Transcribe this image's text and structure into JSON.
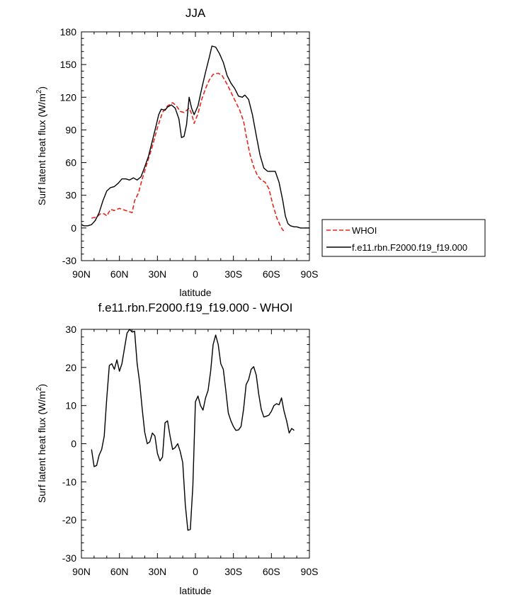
{
  "chart_data": [
    {
      "type": "line",
      "title": "JJA",
      "xlabel": "latitude",
      "ylabel": "Surf latent heat flux (W/m",
      "ylabel_sup": "2",
      "ylabel_end": ")",
      "xlim": [
        90,
        -90
      ],
      "ylim": [
        -30,
        180
      ],
      "x_ticks": [
        90,
        60,
        30,
        0,
        -30,
        -60,
        -90
      ],
      "x_tick_labels": [
        "90N",
        "60N",
        "30N",
        "0",
        "30S",
        "60S",
        "90S"
      ],
      "y_ticks": [
        -30,
        0,
        30,
        60,
        90,
        120,
        150,
        180
      ],
      "y_tick_labels": [
        "-30",
        "0",
        "30",
        "60",
        "90",
        "120",
        "150",
        "180"
      ],
      "legend": "right",
      "series": [
        {
          "name": "WHOI",
          "color": "#e8261e",
          "dash": "dashed",
          "points": [
            [
              82,
              9
            ],
            [
              78,
              10
            ],
            [
              75,
              13
            ],
            [
              72,
              13
            ],
            [
              70,
              11
            ],
            [
              67,
              17
            ],
            [
              64,
              16
            ],
            [
              60,
              18
            ],
            [
              55,
              16
            ],
            [
              50,
              14
            ],
            [
              48,
              25
            ],
            [
              45,
              32
            ],
            [
              42,
              45
            ],
            [
              38,
              60
            ],
            [
              34,
              75
            ],
            [
              30,
              92
            ],
            [
              26,
              106
            ],
            [
              22,
              112
            ],
            [
              18,
              115
            ],
            [
              15,
              112
            ],
            [
              12,
              107
            ],
            [
              9,
              106
            ],
            [
              5,
              110
            ],
            [
              3,
              105
            ],
            [
              1,
              96
            ],
            [
              -2,
              105
            ],
            [
              -5,
              118
            ],
            [
              -8,
              128
            ],
            [
              -11,
              136
            ],
            [
              -14,
              141
            ],
            [
              -18,
              142
            ],
            [
              -21,
              140
            ],
            [
              -25,
              132
            ],
            [
              -30,
              120
            ],
            [
              -35,
              108
            ],
            [
              -38,
              98
            ],
            [
              -40,
              85
            ],
            [
              -43,
              68
            ],
            [
              -46,
              56
            ],
            [
              -49,
              48
            ],
            [
              -52,
              44
            ],
            [
              -55,
              42
            ],
            [
              -58,
              36
            ],
            [
              -61,
              22
            ],
            [
              -64,
              10
            ],
            [
              -67,
              2
            ],
            [
              -69,
              -2
            ],
            [
              -71,
              -3
            ]
          ]
        },
        {
          "name": "f.e11.rbn.F2000.f19_f19.000",
          "color": "#000000",
          "dash": "solid",
          "points": [
            [
              90,
              3
            ],
            [
              88,
              2
            ],
            [
              85,
              2
            ],
            [
              82,
              3
            ],
            [
              79,
              7
            ],
            [
              76,
              14
            ],
            [
              73,
              25
            ],
            [
              70,
              34
            ],
            [
              67,
              37
            ],
            [
              64,
              38
            ],
            [
              61,
              41
            ],
            [
              58,
              45
            ],
            [
              55,
              45
            ],
            [
              52,
              44
            ],
            [
              49,
              46
            ],
            [
              46,
              44
            ],
            [
              43,
              47
            ],
            [
              40,
              56
            ],
            [
              37,
              66
            ],
            [
              34,
              80
            ],
            [
              31,
              94
            ],
            [
              29,
              104
            ],
            [
              27,
              109
            ],
            [
              24,
              108
            ],
            [
              22,
              111
            ],
            [
              19,
              113
            ],
            [
              16,
              110
            ],
            [
              13,
              100
            ],
            [
              11,
              83
            ],
            [
              9,
              84
            ],
            [
              7,
              95
            ],
            [
              5,
              120
            ],
            [
              3,
              110
            ],
            [
              1,
              104
            ],
            [
              -2,
              112
            ],
            [
              -5,
              128
            ],
            [
              -8,
              143
            ],
            [
              -11,
              157
            ],
            [
              -13,
              167
            ],
            [
              -16,
              166
            ],
            [
              -19,
              160
            ],
            [
              -22,
              152
            ],
            [
              -25,
              140
            ],
            [
              -28,
              133
            ],
            [
              -31,
              128
            ],
            [
              -34,
              121
            ],
            [
              -37,
              120
            ],
            [
              -39,
              122
            ],
            [
              -42,
              118
            ],
            [
              -45,
              104
            ],
            [
              -48,
              85
            ],
            [
              -51,
              67
            ],
            [
              -54,
              55
            ],
            [
              -57,
              52
            ],
            [
              -60,
              52
            ],
            [
              -63,
              52
            ],
            [
              -66,
              42
            ],
            [
              -69,
              25
            ],
            [
              -71,
              11
            ],
            [
              -73,
              4
            ],
            [
              -75,
              2
            ],
            [
              -78,
              1
            ],
            [
              -80,
              1
            ],
            [
              -83,
              0
            ],
            [
              -86,
              0
            ],
            [
              -88,
              0
            ],
            [
              -90,
              0
            ]
          ]
        }
      ]
    },
    {
      "type": "line",
      "title": "f.e11.rbn.F2000.f19_f19.000 - WHOI",
      "xlabel": "latitude",
      "ylabel": "Surf latent heat flux (W/m",
      "ylabel_sup": "2",
      "ylabel_end": ")",
      "xlim": [
        90,
        -90
      ],
      "ylim": [
        -30,
        30
      ],
      "x_ticks": [
        90,
        60,
        30,
        0,
        -30,
        -60,
        -90
      ],
      "x_tick_labels": [
        "90N",
        "60N",
        "30N",
        "0",
        "30S",
        "60S",
        "90S"
      ],
      "y_ticks": [
        -30,
        -20,
        -10,
        0,
        10,
        20,
        30
      ],
      "y_tick_labels": [
        "-30",
        "-20",
        "-10",
        "0",
        "10",
        "20",
        "30"
      ],
      "series": [
        {
          "name": "f.e11.rbn.F2000.f19_f19.000 - WHOI",
          "color": "#000000",
          "dash": "solid",
          "points": [
            [
              82,
              -1.5
            ],
            [
              80,
              -6
            ],
            [
              78,
              -5.7
            ],
            [
              76,
              -3
            ],
            [
              74,
              -1.5
            ],
            [
              72,
              2
            ],
            [
              70,
              12
            ],
            [
              68,
              20.5
            ],
            [
              66,
              21
            ],
            [
              64,
              19.5
            ],
            [
              62,
              22
            ],
            [
              60,
              19
            ],
            [
              58,
              21
            ],
            [
              56,
              25
            ],
            [
              54,
              29
            ],
            [
              52,
              30
            ],
            [
              50,
              29.3
            ],
            [
              48,
              29.5
            ],
            [
              46,
              21
            ],
            [
              44,
              16
            ],
            [
              42,
              9
            ],
            [
              40,
              3
            ],
            [
              38,
              0
            ],
            [
              36,
              0.5
            ],
            [
              34,
              2.8
            ],
            [
              32,
              2
            ],
            [
              30,
              -2.5
            ],
            [
              28,
              -4.5
            ],
            [
              26,
              -3.5
            ],
            [
              24,
              5.5
            ],
            [
              22,
              6
            ],
            [
              20,
              2
            ],
            [
              18,
              -1.5
            ],
            [
              16,
              -1
            ],
            [
              14,
              0
            ],
            [
              12,
              -2
            ],
            [
              10,
              -5
            ],
            [
              8,
              -16
            ],
            [
              6,
              -22.7
            ],
            [
              4,
              -22.5
            ],
            [
              2,
              -11
            ],
            [
              0,
              11
            ],
            [
              -2,
              12.5
            ],
            [
              -4,
              10
            ],
            [
              -6,
              8.8
            ],
            [
              -8,
              12
            ],
            [
              -10,
              14
            ],
            [
              -12,
              19
            ],
            [
              -14,
              26
            ],
            [
              -16,
              28.5
            ],
            [
              -18,
              26
            ],
            [
              -20,
              21
            ],
            [
              -22,
              19.5
            ],
            [
              -24,
              14
            ],
            [
              -26,
              8
            ],
            [
              -28,
              6
            ],
            [
              -30,
              4.5
            ],
            [
              -32,
              3.5
            ],
            [
              -34,
              3.6
            ],
            [
              -36,
              4.5
            ],
            [
              -38,
              9
            ],
            [
              -40,
              15.5
            ],
            [
              -42,
              16.8
            ],
            [
              -44,
              19.5
            ],
            [
              -46,
              20.2
            ],
            [
              -48,
              18
            ],
            [
              -50,
              13
            ],
            [
              -52,
              9
            ],
            [
              -54,
              7
            ],
            [
              -56,
              7.2
            ],
            [
              -58,
              7.5
            ],
            [
              -60,
              8.5
            ],
            [
              -62,
              10
            ],
            [
              -64,
              10.5
            ],
            [
              -66,
              10.2
            ],
            [
              -68,
              12
            ],
            [
              -70,
              8.5
            ],
            [
              -72,
              6
            ],
            [
              -74,
              2.8
            ],
            [
              -76,
              4
            ],
            [
              -78,
              3.5
            ]
          ]
        }
      ]
    }
  ]
}
